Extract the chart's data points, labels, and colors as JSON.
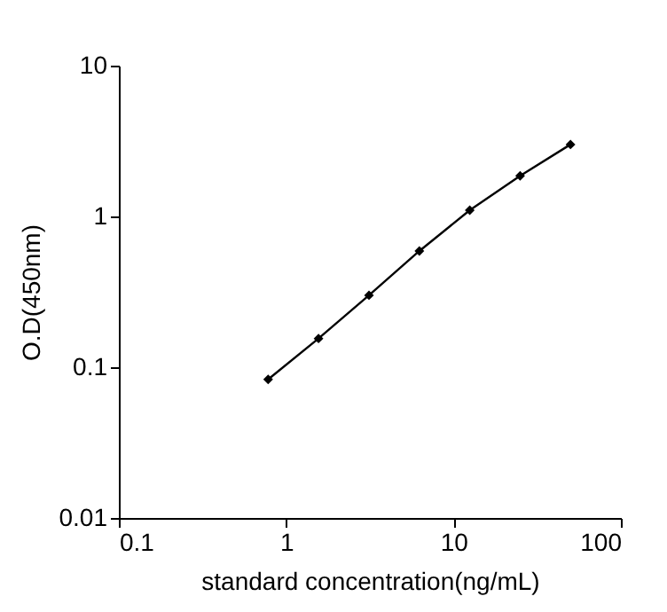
{
  "chart_data": {
    "type": "line",
    "xlabel": "standard concentration(ng/mL)",
    "ylabel": "O.D(450nm)",
    "log": "xy",
    "xlim": [
      0.1,
      100
    ],
    "xticks": [
      0.1,
      1,
      10,
      100
    ],
    "ylim": [
      0.01,
      10
    ],
    "yticks": [
      0.01,
      0.1,
      1,
      10
    ],
    "grid": false,
    "marker": "diamond",
    "line_style": "solid",
    "series": [
      {
        "color": "#000000",
        "x": [
          0.78,
          1.56,
          3.125,
          6.25,
          12.5,
          25,
          50
        ],
        "values": [
          0.083,
          0.155,
          0.3,
          0.59,
          1.1,
          1.86,
          3.0
        ]
      }
    ]
  }
}
